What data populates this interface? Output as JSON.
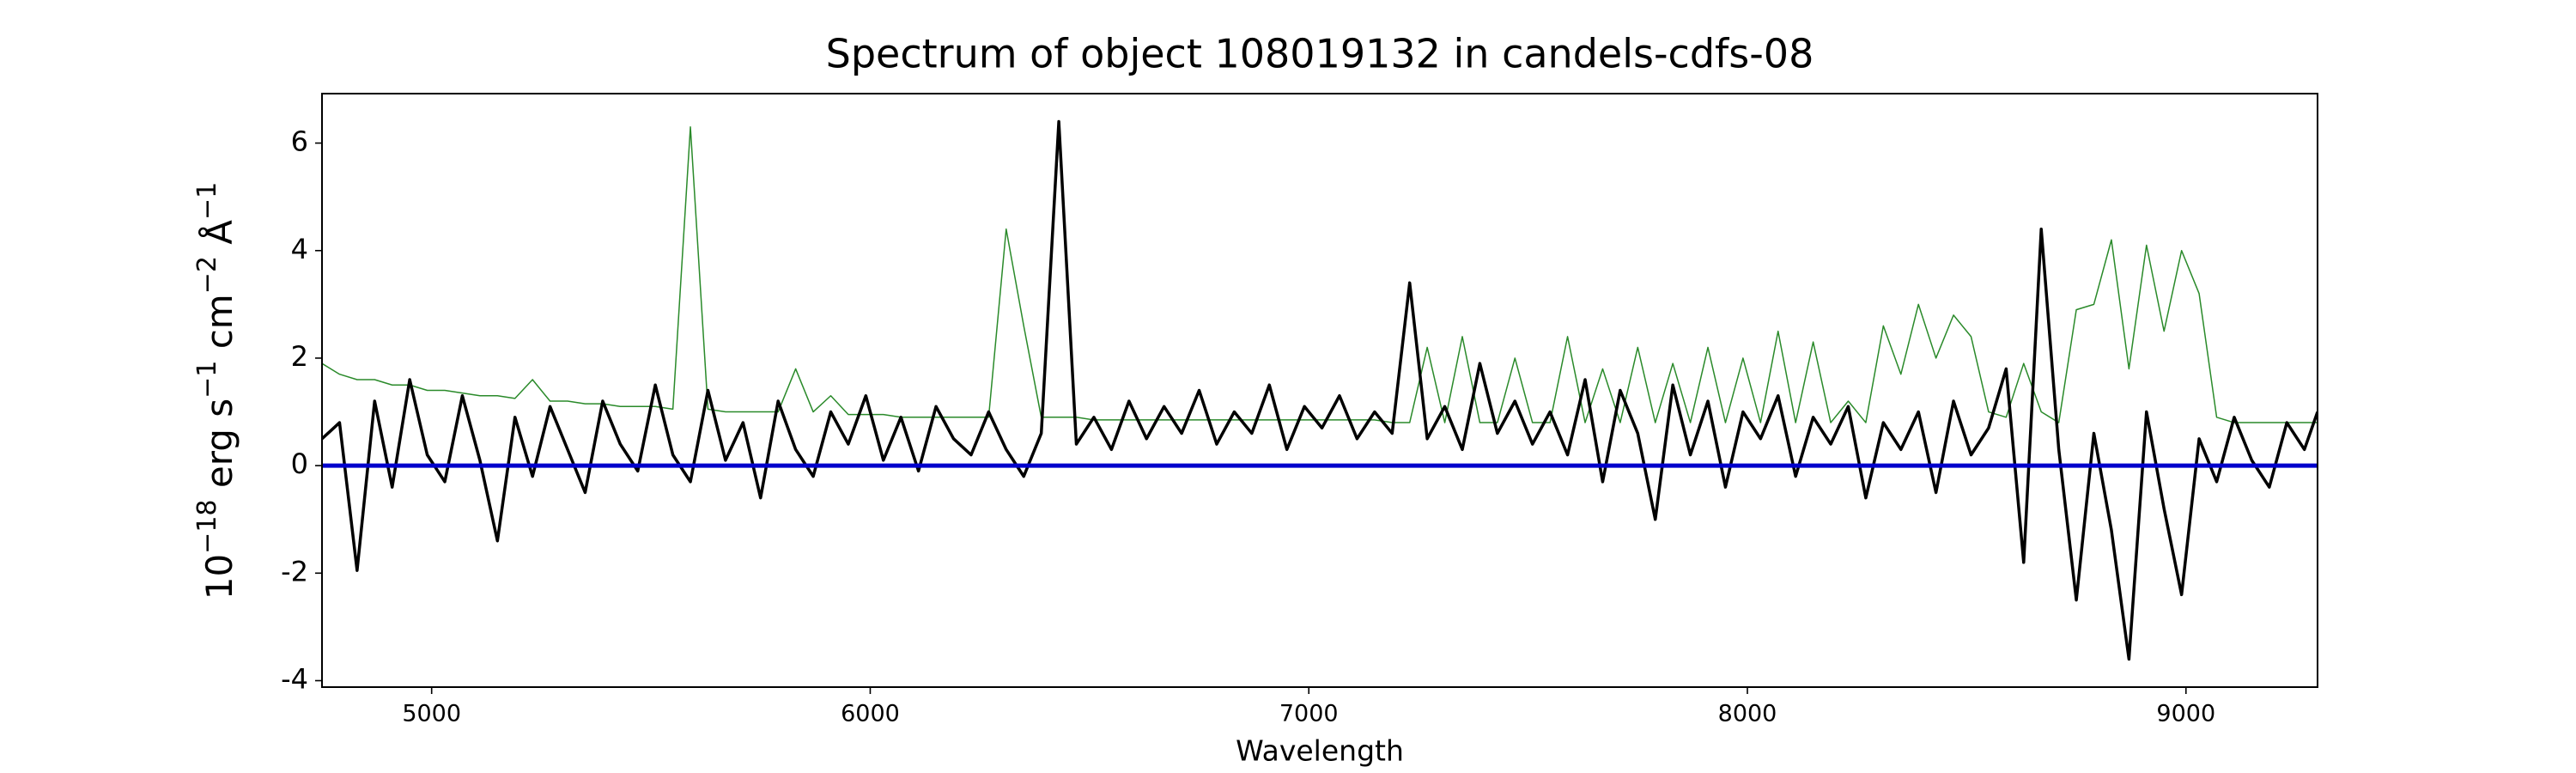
{
  "chart_data": {
    "type": "line",
    "title": "Spectrum of object 108019132 in candels-cdfs-08",
    "xlabel": "Wavelength",
    "ylabel": [
      "10",
      "−18",
      " erg s",
      "−1",
      " cm",
      "−2",
      " Å",
      "−1"
    ],
    "x": [
      4750,
      4790,
      4830,
      4870,
      4910,
      4950,
      4990,
      5030,
      5070,
      5110,
      5150,
      5190,
      5230,
      5270,
      5310,
      5350,
      5390,
      5430,
      5470,
      5510,
      5550,
      5590,
      5630,
      5670,
      5710,
      5750,
      5790,
      5830,
      5870,
      5910,
      5950,
      5990,
      6030,
      6070,
      6110,
      6150,
      6190,
      6230,
      6270,
      6310,
      6350,
      6390,
      6430,
      6470,
      6510,
      6550,
      6590,
      6630,
      6670,
      6710,
      6750,
      6790,
      6830,
      6870,
      6910,
      6950,
      6990,
      7030,
      7070,
      7110,
      7150,
      7190,
      7230,
      7270,
      7310,
      7350,
      7390,
      7430,
      7470,
      7510,
      7550,
      7590,
      7630,
      7670,
      7710,
      7750,
      7790,
      7830,
      7870,
      7910,
      7950,
      7990,
      8030,
      8070,
      8110,
      8150,
      8190,
      8230,
      8270,
      8310,
      8350,
      8390,
      8430,
      8470,
      8510,
      8550,
      8590,
      8630,
      8670,
      8710,
      8750,
      8790,
      8830,
      8870,
      8910,
      8950,
      8990,
      9030,
      9070,
      9110,
      9150,
      9190,
      9230,
      9270,
      9300
    ],
    "series": [
      {
        "color": "#2a8a2a",
        "width": 1.5,
        "values": [
          1.9,
          1.7,
          1.6,
          1.6,
          1.5,
          1.5,
          1.4,
          1.4,
          1.35,
          1.3,
          1.3,
          1.25,
          1.6,
          1.2,
          1.2,
          1.15,
          1.15,
          1.1,
          1.1,
          1.1,
          1.05,
          6.3,
          1.05,
          1.0,
          1.0,
          1.0,
          1.0,
          1.8,
          1.0,
          1.3,
          0.95,
          0.95,
          0.95,
          0.9,
          0.9,
          0.9,
          0.9,
          0.9,
          0.9,
          4.4,
          2.6,
          0.9,
          0.9,
          0.9,
          0.85,
          0.85,
          0.85,
          0.85,
          0.85,
          0.85,
          0.85,
          0.85,
          0.85,
          0.85,
          0.85,
          0.85,
          0.85,
          0.85,
          0.85,
          0.85,
          0.85,
          0.8,
          0.8,
          2.2,
          0.8,
          2.4,
          0.8,
          0.8,
          2.0,
          0.8,
          0.8,
          2.4,
          0.8,
          1.8,
          0.8,
          2.2,
          0.8,
          1.9,
          0.8,
          2.2,
          0.8,
          2.0,
          0.8,
          2.5,
          0.8,
          2.3,
          0.8,
          1.2,
          0.8,
          2.6,
          1.7,
          3.0,
          2.0,
          2.8,
          2.4,
          1.0,
          0.9,
          1.9,
          1.0,
          0.8,
          2.9,
          3.0,
          4.2,
          1.8,
          4.1,
          2.5,
          4.0,
          3.2,
          0.9,
          0.8,
          0.8,
          0.8,
          0.8,
          0.8,
          0.8
        ]
      },
      {
        "color": "#000000",
        "width": 3.5,
        "values": [
          0.5,
          0.8,
          -1.95,
          1.2,
          -0.4,
          1.6,
          0.2,
          -0.3,
          1.3,
          0.1,
          -1.4,
          0.9,
          -0.2,
          1.1,
          0.3,
          -0.5,
          1.2,
          0.4,
          -0.1,
          1.5,
          0.2,
          -0.3,
          1.4,
          0.1,
          0.8,
          -0.6,
          1.2,
          0.3,
          -0.2,
          1.0,
          0.4,
          1.3,
          0.1,
          0.9,
          -0.1,
          1.1,
          0.5,
          0.2,
          1.0,
          0.3,
          -0.2,
          0.6,
          6.4,
          0.4,
          0.9,
          0.3,
          1.2,
          0.5,
          1.1,
          0.6,
          1.4,
          0.4,
          1.0,
          0.6,
          1.5,
          0.3,
          1.1,
          0.7,
          1.3,
          0.5,
          1.0,
          0.6,
          3.4,
          0.5,
          1.1,
          0.3,
          1.9,
          0.6,
          1.2,
          0.4,
          1.0,
          0.2,
          1.6,
          -0.3,
          1.4,
          0.6,
          -1.0,
          1.5,
          0.2,
          1.2,
          -0.4,
          1.0,
          0.5,
          1.3,
          -0.2,
          0.9,
          0.4,
          1.1,
          -0.6,
          0.8,
          0.3,
          1.0,
          -0.5,
          1.2,
          0.2,
          0.7,
          1.8,
          -1.8,
          4.4,
          0.3,
          -2.5,
          0.6,
          -1.2,
          -3.6,
          1.0,
          -0.8,
          -2.4,
          0.5,
          -0.3,
          0.9,
          0.1,
          -0.4,
          0.8,
          0.3,
          1.0
        ]
      }
    ],
    "reference_line": {
      "value": 0,
      "color": "#0000cc"
    },
    "xlim": [
      4750,
      9300
    ],
    "ylim": [
      -4.12,
      6.92
    ],
    "xticks": [
      5000,
      6000,
      7000,
      8000,
      9000
    ],
    "yticks": [
      -4,
      -2,
      0,
      2,
      4,
      6
    ]
  }
}
